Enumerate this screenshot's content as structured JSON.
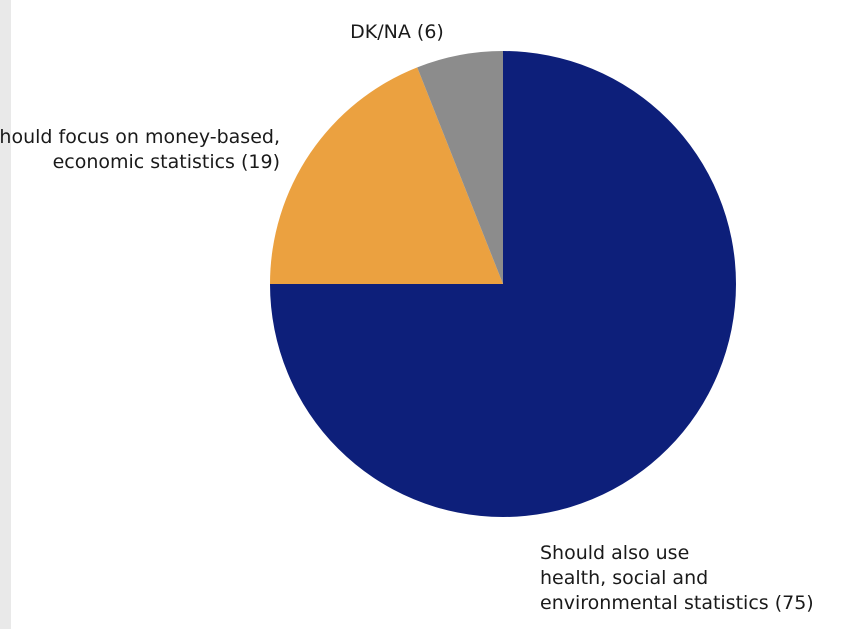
{
  "chart_data": {
    "type": "pie",
    "title": "",
    "slices": [
      {
        "label_lines": [
          "Should also use",
          "health, social and",
          "environmental statistics (75)"
        ],
        "value": 75,
        "color": "#0d1f7a"
      },
      {
        "label_lines": [
          "Should focus on money-based,",
          "economic statistics  (19)"
        ],
        "value": 19,
        "color": "#eba140"
      },
      {
        "label_lines": [
          "DK/NA (6)"
        ],
        "value": 6,
        "color": "#8c8c8c"
      }
    ]
  }
}
